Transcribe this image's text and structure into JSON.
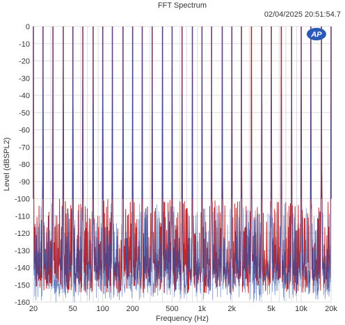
{
  "chart_data": {
    "type": "line",
    "title": "FFT Spectrum",
    "timestamp": "02/04/2025 20:51:54.7",
    "xlabel": "Frequency (Hz)",
    "ylabel": "Level (dBSPL2)",
    "x_scale": "log",
    "xlim": [
      20,
      20000
    ],
    "ylim": [
      -160,
      0
    ],
    "x_ticks": [
      {
        "value": 20,
        "label": "20"
      },
      {
        "value": 50,
        "label": "50"
      },
      {
        "value": 100,
        "label": "100"
      },
      {
        "value": 200,
        "label": "200"
      },
      {
        "value": 500,
        "label": "500"
      },
      {
        "value": 1000,
        "label": "1k"
      },
      {
        "value": 2000,
        "label": "2k"
      },
      {
        "value": 5000,
        "label": "5k"
      },
      {
        "value": 10000,
        "label": "10k"
      },
      {
        "value": 20000,
        "label": "20k"
      }
    ],
    "y_ticks": [
      {
        "value": 0,
        "label": "0"
      },
      {
        "value": -10,
        "label": "-10"
      },
      {
        "value": -20,
        "label": "-20"
      },
      {
        "value": -30,
        "label": "-30"
      },
      {
        "value": -40,
        "label": "-40"
      },
      {
        "value": -50,
        "label": "-50"
      },
      {
        "value": -60,
        "label": "-60"
      },
      {
        "value": -70,
        "label": "-70"
      },
      {
        "value": -80,
        "label": "-80"
      },
      {
        "value": -90,
        "label": "-90"
      },
      {
        "value": -100,
        "label": "-100"
      },
      {
        "value": -110,
        "label": "-110"
      },
      {
        "value": -120,
        "label": "-120"
      },
      {
        "value": -130,
        "label": "-130"
      },
      {
        "value": -140,
        "label": "-140"
      },
      {
        "value": -150,
        "label": "-150"
      },
      {
        "value": -160,
        "label": "-160"
      }
    ],
    "grid": true,
    "logo": "AP",
    "series": [
      {
        "color": "#c0282d",
        "tone_peaks_hz": [
          20,
          25,
          31.5,
          40,
          50,
          63,
          80,
          100,
          125,
          160,
          200,
          250,
          315,
          400,
          500,
          630,
          800,
          1000,
          1250,
          1600,
          2000,
          2500,
          3150,
          4000,
          5000,
          6300,
          8000,
          10000,
          12500,
          16000,
          20000
        ],
        "peak_level_db": 0,
        "noise_floor_db": [
          -160,
          -100
        ]
      },
      {
        "color": "#2b4fa8",
        "tone_peaks_hz": [
          20,
          25,
          31.5,
          40,
          50,
          63,
          80,
          100,
          125,
          160,
          200,
          250,
          315,
          400,
          500,
          630,
          800,
          1000,
          1250,
          1600,
          2000,
          2500,
          3150,
          4000,
          5000,
          6300,
          8000,
          10000,
          12500,
          16000,
          20000
        ],
        "peak_level_db": 0,
        "noise_floor_db": [
          -160,
          -100
        ]
      }
    ]
  }
}
